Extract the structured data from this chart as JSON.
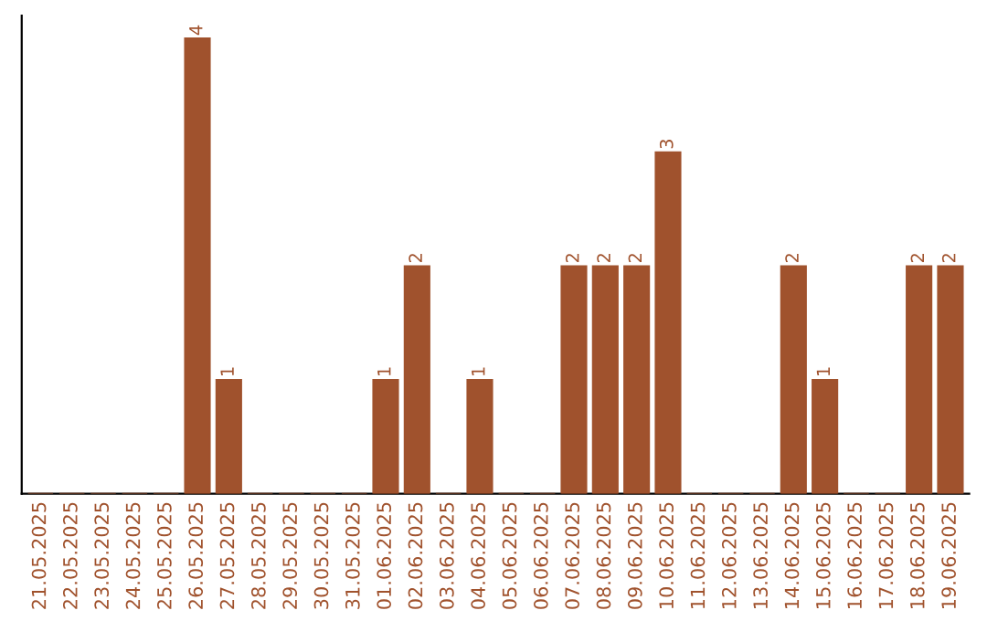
{
  "chart_data": {
    "type": "bar",
    "categories": [
      "21.05.2025",
      "22.05.2025",
      "23.05.2025",
      "24.05.2025",
      "25.05.2025",
      "26.05.2025",
      "27.05.2025",
      "28.05.2025",
      "29.05.2025",
      "30.05.2025",
      "31.05.2025",
      "01.06.2025",
      "02.06.2025",
      "03.06.2025",
      "04.06.2025",
      "05.06.2025",
      "06.06.2025",
      "07.06.2025",
      "08.06.2025",
      "09.06.2025",
      "10.06.2025",
      "11.06.2025",
      "12.06.2025",
      "13.06.2025",
      "14.06.2025",
      "15.06.2025",
      "16.06.2025",
      "17.06.2025",
      "18.06.2025",
      "19.06.2025"
    ],
    "series": [
      {
        "color": "#a0522d",
        "values": [
          0,
          0,
          0,
          0,
          0,
          4,
          1,
          0,
          0,
          0,
          0,
          1,
          2,
          0,
          1,
          0,
          0,
          2,
          2,
          2,
          3,
          0,
          0,
          0,
          2,
          1,
          0,
          0,
          2,
          2
        ],
        "value_labels": [
          null,
          null,
          null,
          null,
          null,
          "4",
          "1",
          null,
          null,
          null,
          null,
          "1",
          "2",
          null,
          "1",
          null,
          null,
          "2",
          "2",
          "2",
          "3",
          null,
          null,
          null,
          "2",
          "1",
          null,
          null,
          "2",
          "2"
        ]
      }
    ],
    "ylim": [
      0,
      4.2
    ],
    "tick_labels": "x",
    "grid": false
  }
}
